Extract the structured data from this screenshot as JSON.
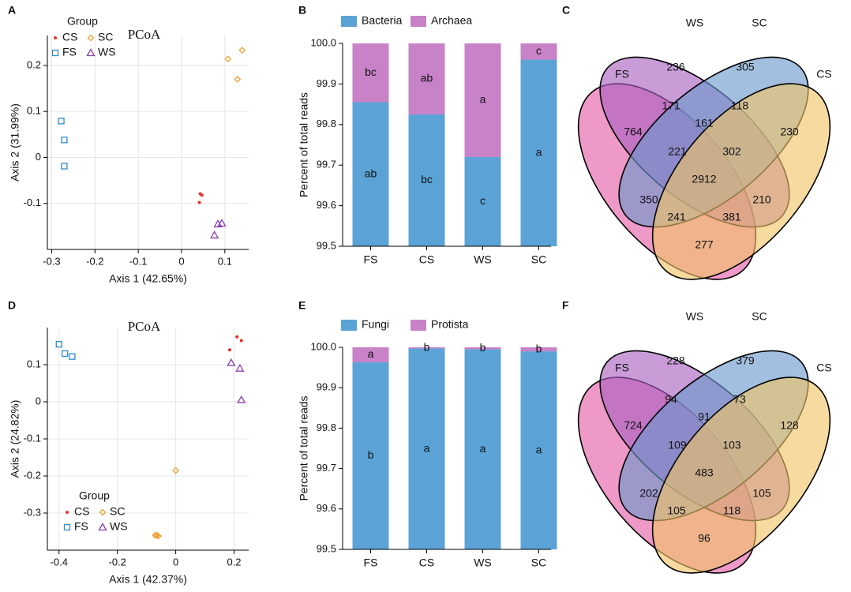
{
  "chart_data": [
    {
      "type": "scatter",
      "panel": "A",
      "title": "PCoA",
      "x_label": "Axis 1 (42.65%)",
      "y_label": "Axis 2 (31.99%)",
      "legend_title": "Group",
      "legend": "top-left",
      "grid": true,
      "xlim": [
        -0.31,
        0.155
      ],
      "ylim": [
        -0.2,
        0.265
      ],
      "xticks": [
        -0.3,
        -0.2,
        -0.1,
        0,
        0.1
      ],
      "yticks": [
        -0.1,
        0,
        0.1,
        0.2
      ],
      "series": [
        {
          "name": "CS",
          "color": "#e8302a",
          "marker": "circle",
          "x": [
            0.043,
            0.047,
            0.041
          ],
          "y": [
            -0.079,
            -0.082,
            -0.098
          ]
        },
        {
          "name": "SC",
          "color": "#f0a030",
          "marker": "diamond",
          "x": [
            0.107,
            0.14,
            0.129
          ],
          "y": [
            0.214,
            0.233,
            0.17
          ]
        },
        {
          "name": "FS",
          "color": "#2e8bc8",
          "marker": "square",
          "x": [
            -0.278,
            -0.271,
            -0.271
          ],
          "y": [
            0.079,
            0.038,
            -0.019
          ]
        },
        {
          "name": "WS",
          "color": "#8b3fb0",
          "marker": "triangle",
          "x": [
            0.084,
            0.093,
            0.076
          ],
          "y": [
            -0.145,
            -0.143,
            -0.169
          ]
        }
      ]
    },
    {
      "type": "bar",
      "panel": "B",
      "y_label": "Percent of total reads",
      "legend": "top",
      "categories": [
        "FS",
        "CS",
        "WS",
        "SC"
      ],
      "ylim": [
        99.5,
        100
      ],
      "yticks": [
        99.5,
        99.6,
        99.7,
        99.8,
        99.9,
        {
          "value": 100,
          "label": "100.0"
        }
      ],
      "series": [
        {
          "name": "Bacteria",
          "color": "#5ba3d6",
          "values": [
            99.855,
            99.825,
            99.72,
            99.96
          ],
          "letters": [
            "ab",
            "bc",
            "c",
            "a"
          ]
        },
        {
          "name": "Archaea",
          "color": "#c882c8",
          "values": [
            0.145,
            0.175,
            0.28,
            0.04
          ],
          "letters": [
            "bc",
            "ab",
            "a",
            "c"
          ]
        }
      ]
    },
    {
      "type": "venn",
      "panel": "C",
      "sets": [
        {
          "name": "FS",
          "color": "#e45aa4"
        },
        {
          "name": "WS",
          "color": "#a860c0"
        },
        {
          "name": "SC",
          "color": "#6a98cc"
        },
        {
          "name": "CS",
          "color": "#f0c466"
        }
      ],
      "values": [
        764,
        236,
        305,
        230,
        171,
        161,
        118,
        221,
        302,
        2912,
        350,
        241,
        381,
        210,
        277
      ]
    },
    {
      "type": "scatter",
      "panel": "D",
      "title": "PCoA",
      "x_label": "Axis 1 (42.37%)",
      "y_label": "Axis 2 (24.82%)",
      "legend_title": "Group",
      "legend": "bottom-left",
      "grid": true,
      "xlim": [
        -0.44,
        0.25
      ],
      "ylim": [
        -0.4,
        0.2
      ],
      "xticks": [
        -0.4,
        -0.2,
        0,
        0.2
      ],
      "yticks": [
        -0.3,
        -0.2,
        -0.1,
        0,
        0.1
      ],
      "series": [
        {
          "name": "CS",
          "color": "#e8302a",
          "marker": "circle",
          "x": [
            0.21,
            0.225,
            0.185
          ],
          "y": [
            0.175,
            0.165,
            0.14
          ]
        },
        {
          "name": "SC",
          "color": "#f0a030",
          "marker": "diamond",
          "x": [
            0,
            -0.065,
            -0.07,
            -0.06
          ],
          "y": [
            -0.185,
            -0.36,
            -0.36,
            -0.362
          ]
        },
        {
          "name": "FS",
          "color": "#2e8bc8",
          "marker": "square",
          "x": [
            -0.4,
            -0.38,
            -0.355
          ],
          "y": [
            0.155,
            0.13,
            0.122
          ]
        },
        {
          "name": "WS",
          "color": "#8b3fb0",
          "marker": "triangle",
          "x": [
            0.19,
            0.22,
            0.225
          ],
          "y": [
            0.105,
            0.09,
            0.005
          ]
        }
      ]
    },
    {
      "type": "bar",
      "panel": "E",
      "y_label": "Percent of total reads",
      "legend": "top",
      "categories": [
        "FS",
        "CS",
        "WS",
        "SC"
      ],
      "ylim": [
        99.5,
        100
      ],
      "yticks": [
        99.5,
        99.6,
        99.7,
        99.8,
        99.9,
        {
          "value": 100,
          "label": "100.0"
        }
      ],
      "series": [
        {
          "name": "Fungi",
          "color": "#5ba3d6",
          "values": [
            99.963,
            99.997,
            99.995,
            99.99
          ],
          "letters": [
            "b",
            "a",
            "a",
            "a"
          ]
        },
        {
          "name": "Protista",
          "color": "#c882c8",
          "values": [
            0.037,
            0.003,
            0.005,
            0.01
          ],
          "letters": [
            "a",
            "b",
            "b",
            "b"
          ]
        }
      ]
    },
    {
      "type": "venn",
      "panel": "F",
      "sets": [
        {
          "name": "FS",
          "color": "#e45aa4"
        },
        {
          "name": "WS",
          "color": "#a860c0"
        },
        {
          "name": "SC",
          "color": "#6a98cc"
        },
        {
          "name": "CS",
          "color": "#f0c466"
        }
      ],
      "values": [
        724,
        228,
        379,
        128,
        94,
        91,
        73,
        109,
        103,
        483,
        202,
        105,
        118,
        105,
        96
      ]
    }
  ]
}
